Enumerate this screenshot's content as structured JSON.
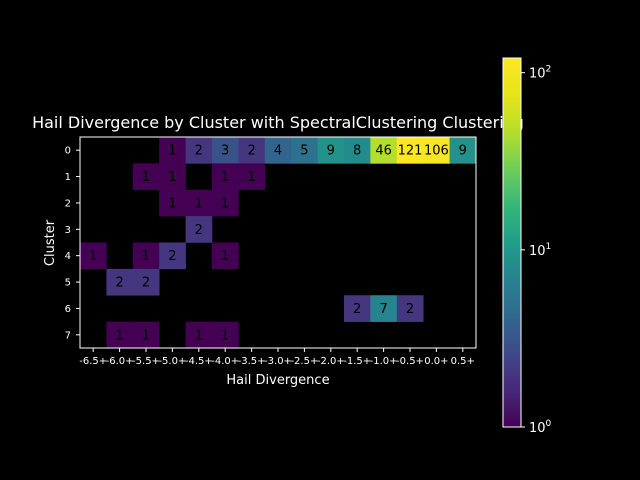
{
  "chart_data": {
    "type": "heatmap",
    "title": "Hail Divergence by Cluster with SpectralClustering Clustering",
    "xlabel": "Hail Divergence",
    "ylabel": "Cluster",
    "x_categories": [
      "-6.5+",
      "-6.0+",
      "-5.5+",
      "-5.0+",
      "-4.5+",
      "-4.0+",
      "-3.5+",
      "-3.0+",
      "-2.5+",
      "-2.0+",
      "-1.5+",
      "-1.0+",
      "-0.5+",
      "0.0+",
      "0.5+"
    ],
    "y_categories": [
      "0",
      "1",
      "2",
      "3",
      "4",
      "5",
      "6",
      "7"
    ],
    "values": [
      [
        null,
        null,
        null,
        1,
        2,
        3,
        2,
        4,
        5,
        9,
        8,
        46,
        121,
        106,
        9
      ],
      [
        null,
        null,
        1,
        1,
        null,
        1,
        1,
        null,
        null,
        null,
        null,
        null,
        null,
        null,
        null
      ],
      [
        null,
        null,
        null,
        1,
        1,
        1,
        null,
        null,
        null,
        null,
        null,
        null,
        null,
        null,
        null
      ],
      [
        null,
        null,
        null,
        null,
        2,
        null,
        null,
        null,
        null,
        null,
        null,
        null,
        null,
        null,
        null
      ],
      [
        1,
        null,
        1,
        2,
        null,
        1,
        null,
        null,
        null,
        null,
        null,
        null,
        null,
        null,
        null
      ],
      [
        null,
        2,
        2,
        null,
        null,
        null,
        null,
        null,
        null,
        null,
        null,
        null,
        null,
        null,
        null
      ],
      [
        null,
        null,
        null,
        null,
        null,
        null,
        null,
        null,
        null,
        null,
        2,
        7,
        2,
        null,
        null
      ],
      [
        null,
        1,
        1,
        null,
        1,
        1,
        null,
        null,
        null,
        null,
        null,
        null,
        null,
        null,
        null
      ]
    ],
    "colormap": "viridis",
    "color_scale": "log",
    "color_range": [
      1,
      121
    ],
    "colorbar_ticks": [
      {
        "base": "10",
        "exp": "0",
        "value": 1
      },
      {
        "base": "10",
        "exp": "1",
        "value": 10
      },
      {
        "base": "10",
        "exp": "2",
        "value": 100
      }
    ],
    "background": "#000000",
    "text_color": "#ffffff",
    "cell_text_color": "#000000"
  }
}
